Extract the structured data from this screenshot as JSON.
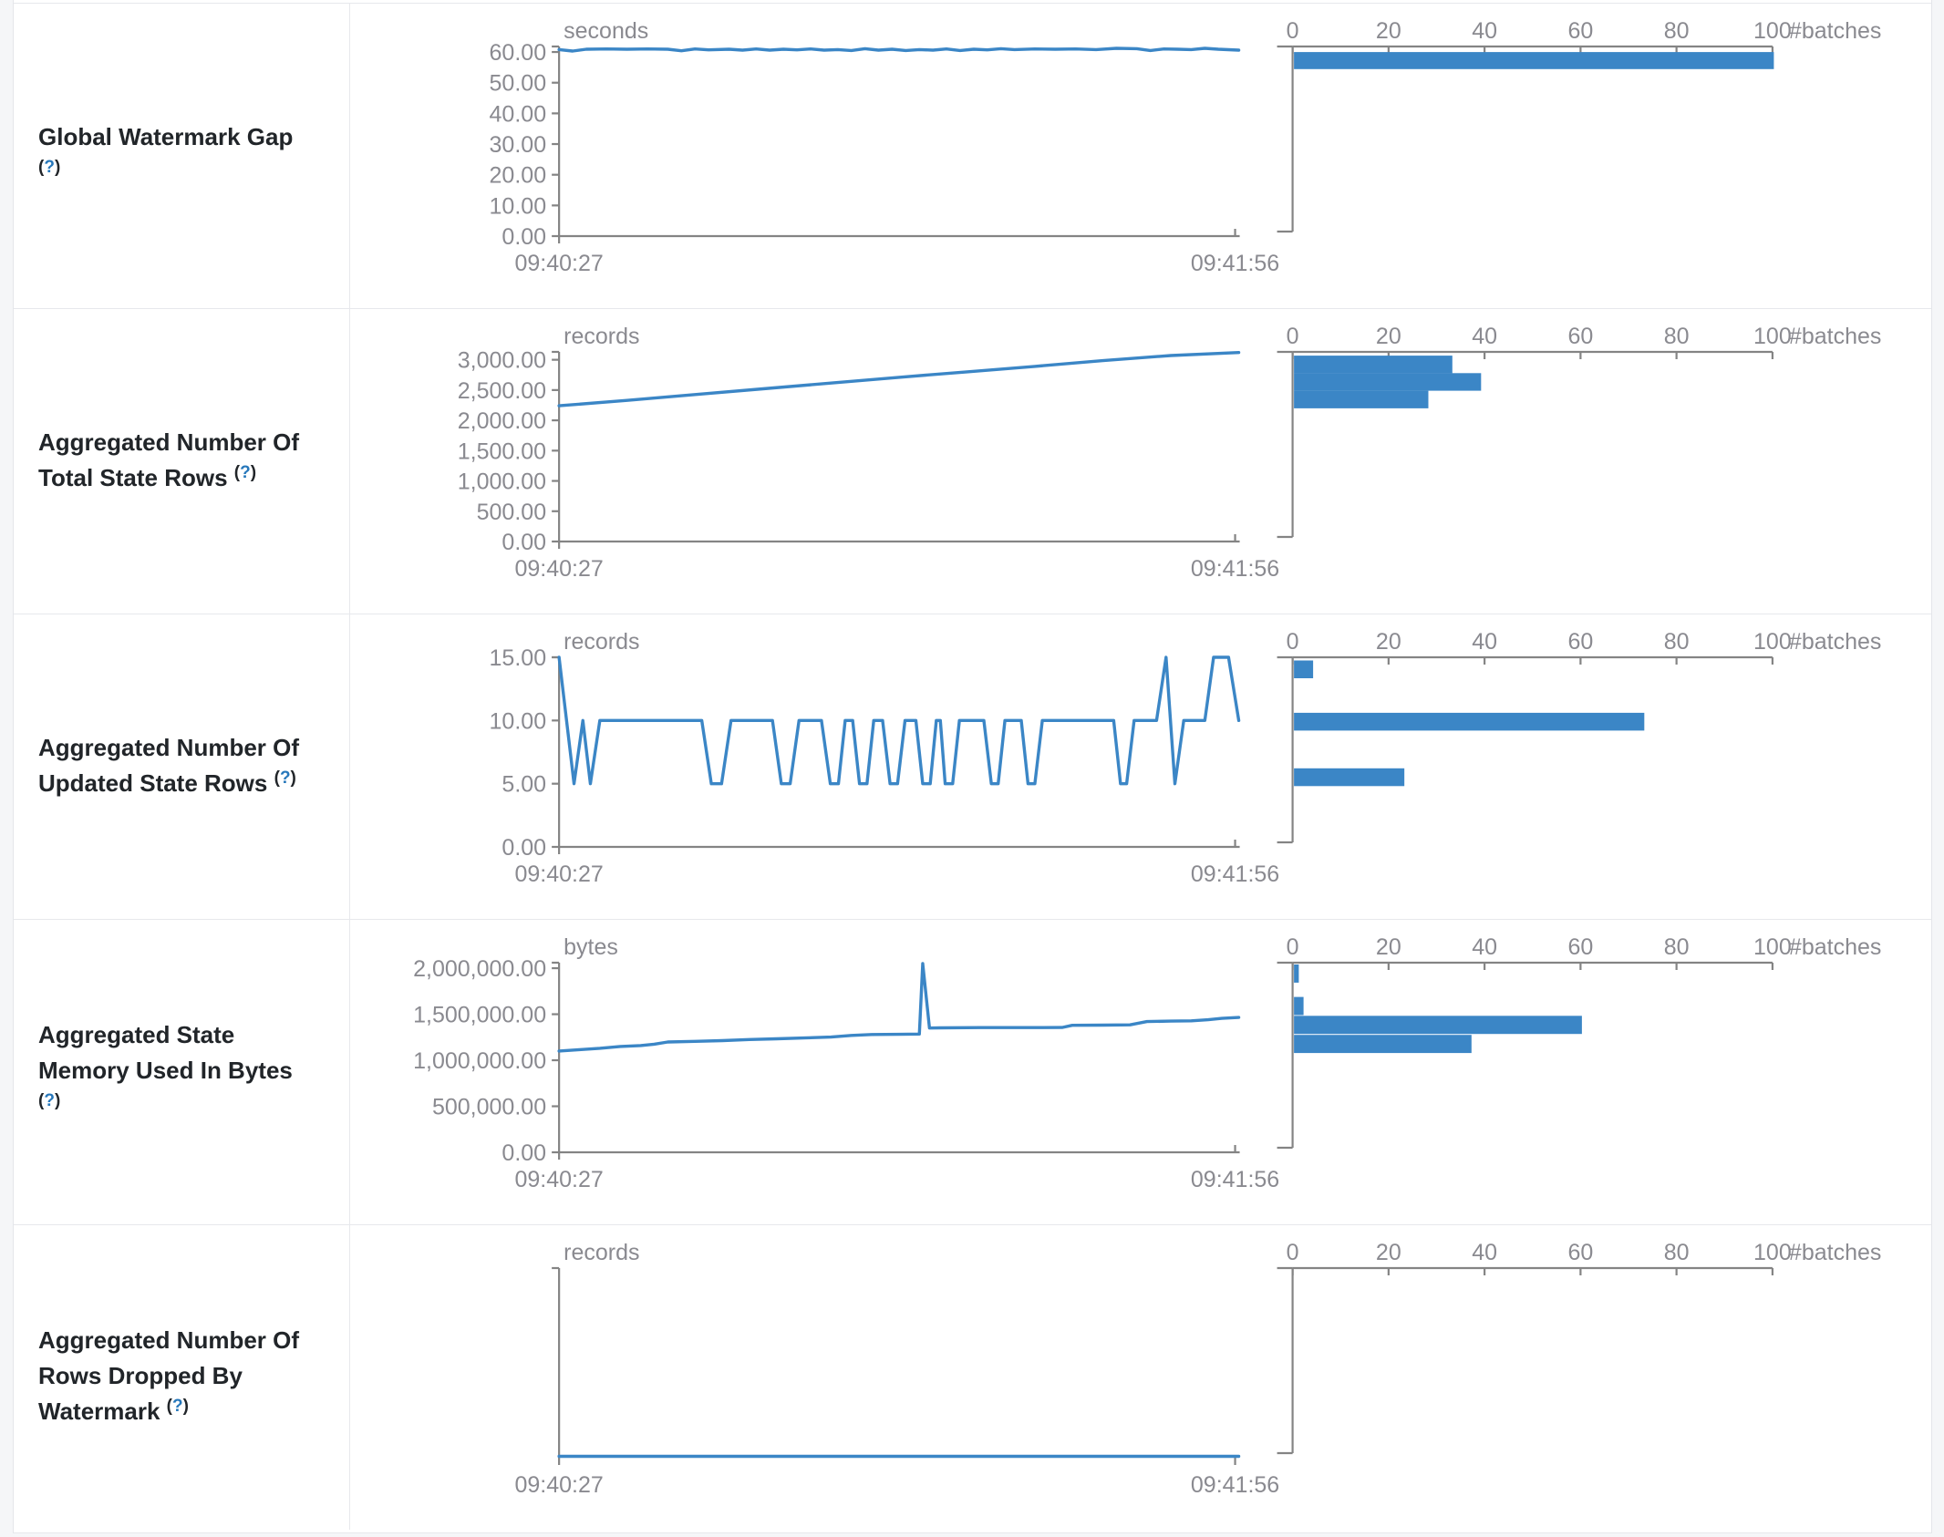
{
  "page": {
    "unit_label_color": "#8a8a90",
    "axis_color": "#848484",
    "series_color": "#3b86c6",
    "label_color": "#212529",
    "help_color": "#2778bb"
  },
  "chart_data": [
    {
      "type": "line",
      "name": "global-watermark-gap",
      "label_lines": [
        "Global Watermark Gap"
      ],
      "help": {
        "open": "(",
        "q": "?",
        "close": ")",
        "inline": false
      },
      "timeline": {
        "title": "Global Watermark Gap",
        "ylabel": "seconds",
        "xlabel": "",
        "x_start": "09:40:27",
        "x_end": "09:41:56",
        "ymax": 61.8,
        "yticks": [
          {
            "label": "60.00",
            "v": 60
          },
          {
            "label": "50.00",
            "v": 50
          },
          {
            "label": "40.00",
            "v": 40
          },
          {
            "label": "30.00",
            "v": 30
          },
          {
            "label": "20.00",
            "v": 20
          },
          {
            "label": "10.00",
            "v": 10
          },
          {
            "label": "0.00",
            "v": 0
          }
        ],
        "show_xaxis": true,
        "right_tick_dir": "up",
        "series": [
          [
            0,
            60.8
          ],
          [
            0.02,
            60.3
          ],
          [
            0.04,
            60.9
          ],
          [
            0.07,
            61.0
          ],
          [
            0.1,
            60.9
          ],
          [
            0.13,
            61.0
          ],
          [
            0.16,
            60.9
          ],
          [
            0.18,
            60.4
          ],
          [
            0.2,
            61.0
          ],
          [
            0.22,
            60.7
          ],
          [
            0.25,
            60.9
          ],
          [
            0.27,
            60.6
          ],
          [
            0.29,
            61.0
          ],
          [
            0.31,
            60.6
          ],
          [
            0.33,
            60.9
          ],
          [
            0.35,
            60.7
          ],
          [
            0.37,
            61.0
          ],
          [
            0.39,
            60.6
          ],
          [
            0.41,
            60.8
          ],
          [
            0.43,
            60.5
          ],
          [
            0.45,
            61.1
          ],
          [
            0.47,
            60.6
          ],
          [
            0.49,
            60.9
          ],
          [
            0.51,
            60.5
          ],
          [
            0.53,
            60.8
          ],
          [
            0.55,
            60.6
          ],
          [
            0.57,
            61.0
          ],
          [
            0.59,
            60.5
          ],
          [
            0.61,
            60.9
          ],
          [
            0.63,
            60.7
          ],
          [
            0.65,
            61.1
          ],
          [
            0.67,
            60.8
          ],
          [
            0.7,
            61.0
          ],
          [
            0.73,
            60.9
          ],
          [
            0.76,
            61.0
          ],
          [
            0.79,
            60.8
          ],
          [
            0.82,
            61.2
          ],
          [
            0.85,
            61.1
          ],
          [
            0.87,
            60.5
          ],
          [
            0.89,
            61.0
          ],
          [
            0.91,
            60.9
          ],
          [
            0.93,
            60.8
          ],
          [
            0.95,
            61.2
          ],
          [
            0.97,
            60.9
          ],
          [
            1,
            60.6
          ]
        ]
      },
      "histogram": {
        "type": "bar",
        "axis_label": "#batches",
        "ticks": [
          "0",
          "20",
          "40",
          "60",
          "80",
          "100"
        ],
        "xmax": 100,
        "bar_h": 0.092,
        "bars": [
          {
            "count": 100,
            "top": 0.03
          }
        ]
      }
    },
    {
      "type": "line",
      "name": "aggregated-number-of-total-state-rows",
      "label_lines": [
        "Aggregated Number Of",
        "Total State Rows"
      ],
      "help": {
        "open": "(",
        "q": "?",
        "close": ")",
        "inline": true
      },
      "timeline": {
        "title": "Aggregated Number Of Total State Rows",
        "ylabel": "records",
        "xlabel": "",
        "x_start": "09:40:27",
        "x_end": "09:41:56",
        "ymax": 3130,
        "yticks": [
          {
            "label": "3,000.00",
            "v": 3000
          },
          {
            "label": "2,500.00",
            "v": 2500
          },
          {
            "label": "2,000.00",
            "v": 2000
          },
          {
            "label": "1,500.00",
            "v": 1500
          },
          {
            "label": "1,000.00",
            "v": 1000
          },
          {
            "label": "500.00",
            "v": 500
          },
          {
            "label": "0.00",
            "v": 0
          }
        ],
        "show_xaxis": true,
        "right_tick_dir": "up",
        "series": [
          [
            0,
            2240
          ],
          [
            0.1,
            2330
          ],
          [
            0.2,
            2425
          ],
          [
            0.3,
            2520
          ],
          [
            0.4,
            2615
          ],
          [
            0.5,
            2710
          ],
          [
            0.6,
            2800
          ],
          [
            0.7,
            2890
          ],
          [
            0.8,
            2985
          ],
          [
            0.9,
            3070
          ],
          [
            1,
            3120
          ]
        ]
      },
      "histogram": {
        "type": "bar",
        "axis_label": "#batches",
        "ticks": [
          "0",
          "20",
          "40",
          "60",
          "80",
          "100"
        ],
        "xmax": 100,
        "bar_h": 0.095,
        "bars": [
          {
            "count": 33,
            "top": 0.02
          },
          {
            "count": 39,
            "top": 0.115
          },
          {
            "count": 28,
            "top": 0.21
          }
        ]
      }
    },
    {
      "type": "line",
      "name": "aggregated-number-of-updated-state-rows",
      "label_lines": [
        "Aggregated Number Of",
        "Updated State Rows"
      ],
      "help": {
        "open": "(",
        "q": "?",
        "close": ")",
        "inline": true
      },
      "timeline": {
        "title": "Aggregated Number Of Updated State Rows",
        "ylabel": "records",
        "xlabel": "",
        "x_start": "09:40:27",
        "x_end": "09:41:56",
        "ymax": 15,
        "yticks": [
          {
            "label": "15.00",
            "v": 15
          },
          {
            "label": "10.00",
            "v": 10
          },
          {
            "label": "5.00",
            "v": 5
          },
          {
            "label": "0.00",
            "v": 0
          }
        ],
        "show_xaxis": true,
        "right_tick_dir": "up",
        "series": [
          [
            0,
            15
          ],
          [
            0.022,
            5
          ],
          [
            0.035,
            10
          ],
          [
            0.046,
            5
          ],
          [
            0.06,
            10
          ],
          [
            0.21,
            10
          ],
          [
            0.224,
            5
          ],
          [
            0.239,
            5
          ],
          [
            0.253,
            10
          ],
          [
            0.314,
            10
          ],
          [
            0.327,
            5
          ],
          [
            0.34,
            5
          ],
          [
            0.353,
            10
          ],
          [
            0.386,
            10
          ],
          [
            0.399,
            5
          ],
          [
            0.411,
            5
          ],
          [
            0.421,
            10
          ],
          [
            0.432,
            10
          ],
          [
            0.442,
            5
          ],
          [
            0.453,
            5
          ],
          [
            0.463,
            10
          ],
          [
            0.476,
            10
          ],
          [
            0.487,
            5
          ],
          [
            0.498,
            5
          ],
          [
            0.509,
            10
          ],
          [
            0.525,
            10
          ],
          [
            0.535,
            5
          ],
          [
            0.546,
            5
          ],
          [
            0.555,
            10
          ],
          [
            0.561,
            10
          ],
          [
            0.568,
            5
          ],
          [
            0.579,
            5
          ],
          [
            0.589,
            10
          ],
          [
            0.625,
            10
          ],
          [
            0.636,
            5
          ],
          [
            0.646,
            5
          ],
          [
            0.656,
            10
          ],
          [
            0.68,
            10
          ],
          [
            0.69,
            5
          ],
          [
            0.7,
            5
          ],
          [
            0.711,
            10
          ],
          [
            0.816,
            10
          ],
          [
            0.826,
            5
          ],
          [
            0.835,
            5
          ],
          [
            0.846,
            10
          ],
          [
            0.879,
            10
          ],
          [
            0.893,
            15
          ],
          [
            0.906,
            5
          ],
          [
            0.919,
            10
          ],
          [
            0.95,
            10
          ],
          [
            0.963,
            15
          ],
          [
            0.985,
            15
          ],
          [
            1,
            10
          ]
        ]
      },
      "histogram": {
        "type": "bar",
        "axis_label": "#batches",
        "ticks": [
          "0",
          "20",
          "40",
          "60",
          "80",
          "100"
        ],
        "xmax": 100,
        "bar_h": 0.096,
        "bars": [
          {
            "count": 4,
            "top": 0.017
          },
          {
            "count": 73,
            "top": 0.3
          },
          {
            "count": 23,
            "top": 0.6
          }
        ]
      }
    },
    {
      "type": "line",
      "name": "aggregated-state-memory-used-in-bytes",
      "label_lines": [
        "Aggregated State",
        "Memory Used In Bytes"
      ],
      "help": {
        "open": "(",
        "q": "?",
        "close": ")",
        "inline": false
      },
      "timeline": {
        "title": "Aggregated State Memory Used In Bytes",
        "ylabel": "bytes",
        "xlabel": "",
        "x_start": "09:40:27",
        "x_end": "09:41:56",
        "ymax": 2060000,
        "yticks": [
          {
            "label": "2,000,000.00",
            "v": 2000000
          },
          {
            "label": "1,500,000.00",
            "v": 1500000
          },
          {
            "label": "1,000,000.00",
            "v": 1000000
          },
          {
            "label": "500,000.00",
            "v": 500000
          },
          {
            "label": "0.00",
            "v": 0
          }
        ],
        "show_xaxis": true,
        "right_tick_dir": "up",
        "series": [
          [
            0,
            1100000
          ],
          [
            0.03,
            1115000
          ],
          [
            0.06,
            1130000
          ],
          [
            0.09,
            1150000
          ],
          [
            0.12,
            1160000
          ],
          [
            0.14,
            1175000
          ],
          [
            0.16,
            1198000
          ],
          [
            0.2,
            1205000
          ],
          [
            0.24,
            1213000
          ],
          [
            0.28,
            1225000
          ],
          [
            0.32,
            1233000
          ],
          [
            0.36,
            1242000
          ],
          [
            0.4,
            1252000
          ],
          [
            0.43,
            1270000
          ],
          [
            0.46,
            1280000
          ],
          [
            0.5,
            1282000
          ],
          [
            0.53,
            1285000
          ],
          [
            0.535,
            2050000
          ],
          [
            0.545,
            1350000
          ],
          [
            0.56,
            1352000
          ],
          [
            0.62,
            1355000
          ],
          [
            0.68,
            1355000
          ],
          [
            0.74,
            1356000
          ],
          [
            0.755,
            1380000
          ],
          [
            0.8,
            1382000
          ],
          [
            0.84,
            1385000
          ],
          [
            0.865,
            1420000
          ],
          [
            0.9,
            1425000
          ],
          [
            0.93,
            1428000
          ],
          [
            0.955,
            1440000
          ],
          [
            0.975,
            1455000
          ],
          [
            1,
            1465000
          ]
        ]
      },
      "histogram": {
        "type": "bar",
        "axis_label": "#batches",
        "ticks": [
          "0",
          "20",
          "40",
          "60",
          "80",
          "100"
        ],
        "xmax": 100,
        "bar_h": 0.098,
        "bars": [
          {
            "count": 1,
            "top": 0.01
          },
          {
            "count": 2,
            "top": 0.185
          },
          {
            "count": 60,
            "top": 0.287
          },
          {
            "count": 37,
            "top": 0.39
          }
        ]
      }
    },
    {
      "type": "line",
      "name": "aggregated-number-of-rows-dropped-by-watermark",
      "label_lines": [
        "Aggregated Number Of",
        "Rows Dropped By",
        "Watermark"
      ],
      "help": {
        "open": "(",
        "q": "?",
        "close": ")",
        "inline": true
      },
      "timeline": {
        "title": "Aggregated Number Of Rows Dropped By Watermark",
        "ylabel": "records",
        "xlabel": "",
        "x_start": "09:40:27",
        "x_end": "09:41:56",
        "ymax": 1,
        "yticks": [],
        "show_xaxis": false,
        "right_tick_dir": "down",
        "series": [
          [
            0,
            0
          ],
          [
            1,
            0
          ]
        ]
      },
      "histogram": {
        "type": "bar",
        "axis_label": "#batches",
        "ticks": [
          "0",
          "20",
          "40",
          "60",
          "80",
          "100"
        ],
        "xmax": 100,
        "bar_h": 0.095,
        "bars": []
      }
    }
  ]
}
